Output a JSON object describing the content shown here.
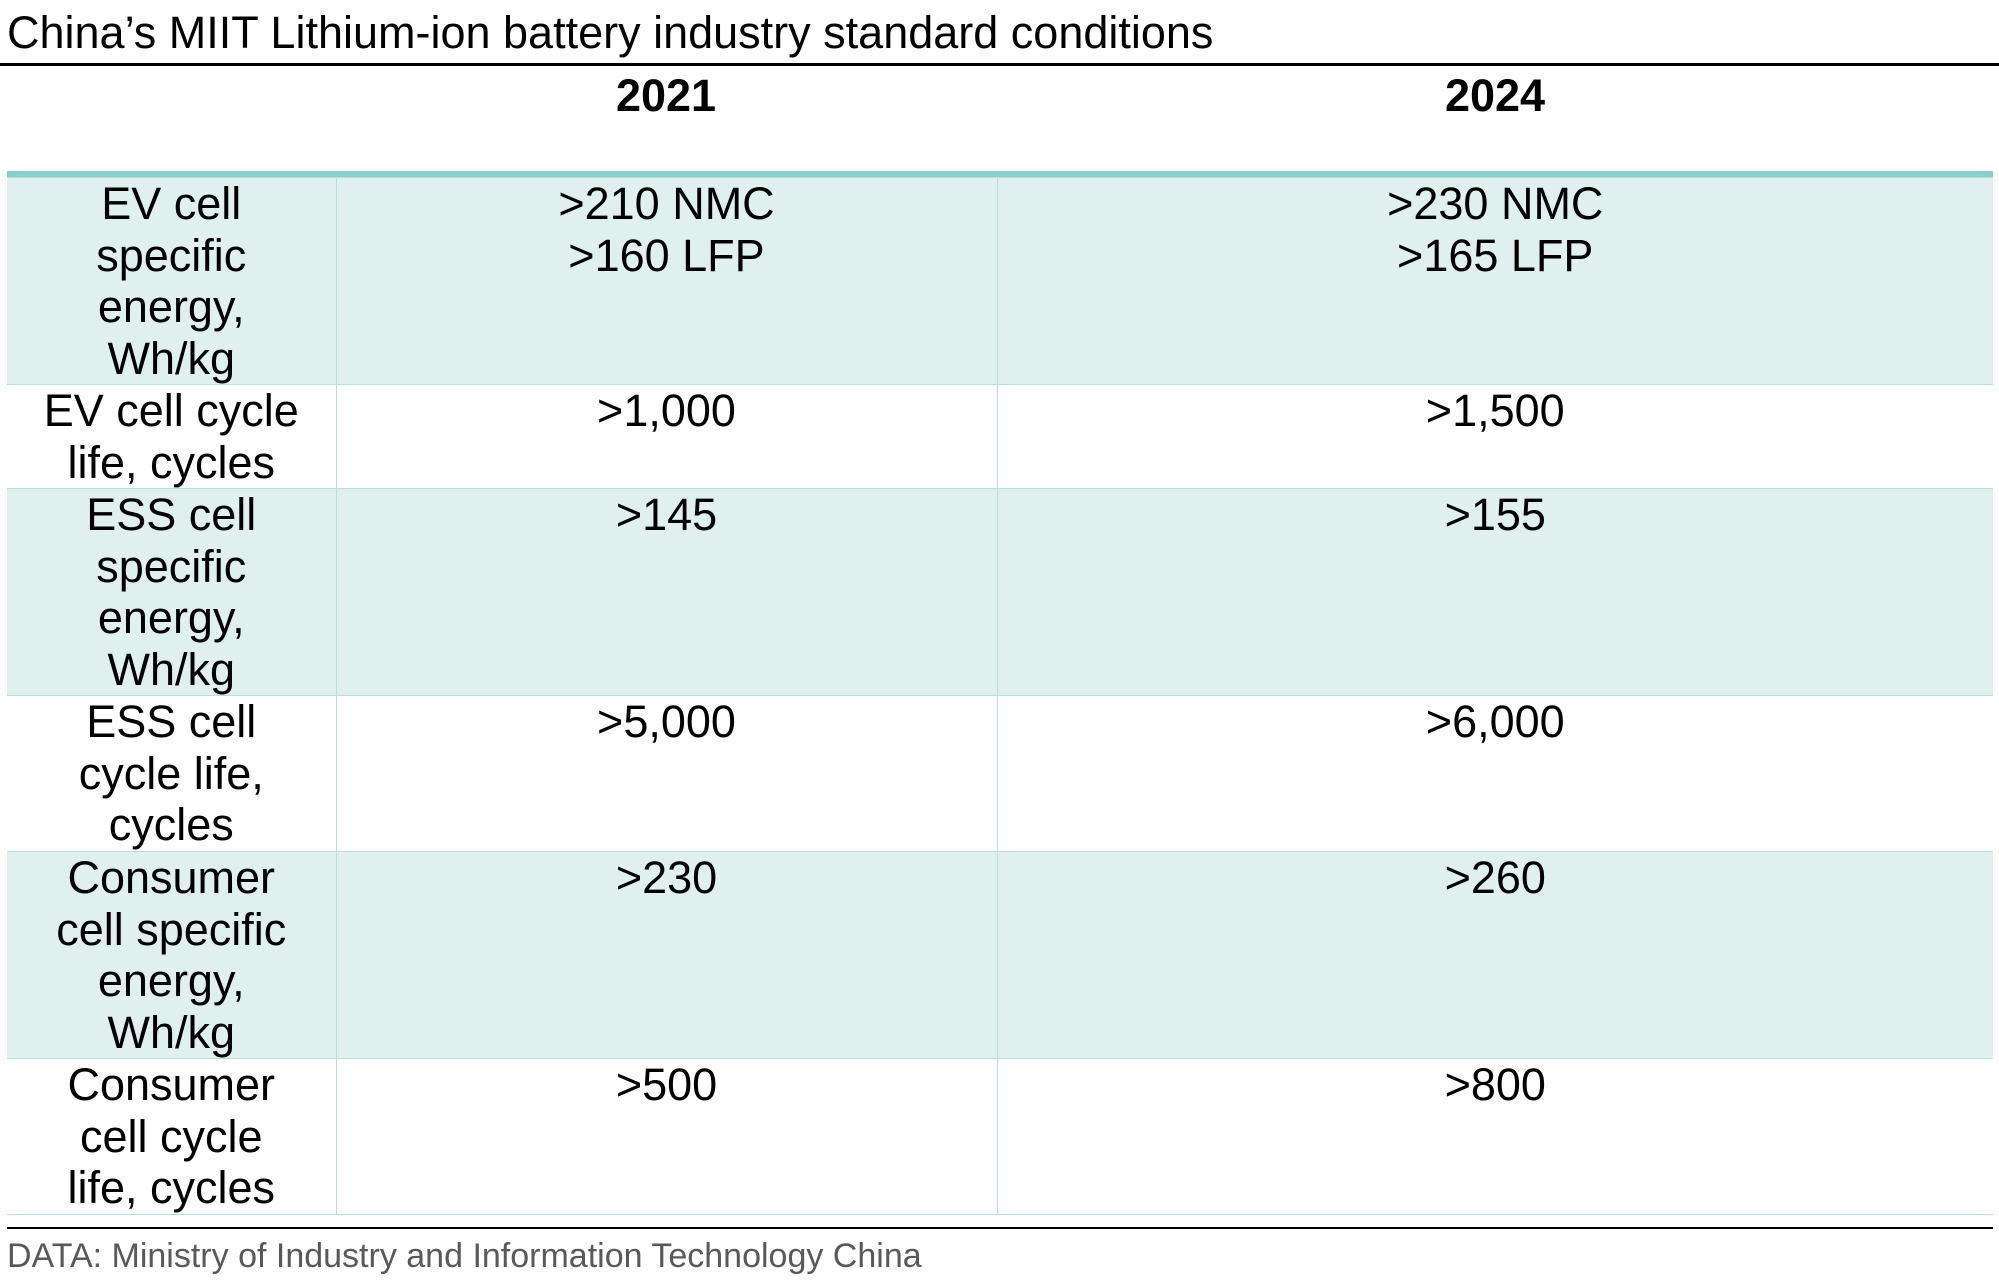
{
  "chart_data": {
    "type": "table",
    "title": "China’s MIIT Lithium-ion battery industry standard conditions",
    "columns": [
      "2021",
      "2024"
    ],
    "rows": [
      {
        "label_lines": [
          "EV cell",
          "specific",
          "energy,",
          "Wh/kg"
        ],
        "values": [
          [
            ">210 NMC",
            ">160 LFP"
          ],
          [
            ">230 NMC",
            ">165 LFP"
          ]
        ]
      },
      {
        "label_lines": [
          "EV cell cycle",
          "life, cycles"
        ],
        "values": [
          [
            ">1,000"
          ],
          [
            ">1,500"
          ]
        ]
      },
      {
        "label_lines": [
          "ESS cell",
          "specific",
          "energy,",
          "Wh/kg"
        ],
        "values": [
          [
            ">145"
          ],
          [
            ">155"
          ]
        ]
      },
      {
        "label_lines": [
          "ESS cell",
          "cycle life,",
          "cycles"
        ],
        "values": [
          [
            ">5,000"
          ],
          [
            ">6,000"
          ]
        ]
      },
      {
        "label_lines": [
          "Consumer",
          "cell specific",
          "energy,",
          "Wh/kg"
        ],
        "values": [
          [
            ">230"
          ],
          [
            ">260"
          ]
        ]
      },
      {
        "label_lines": [
          "Consumer",
          "cell cycle",
          "life, cycles"
        ],
        "values": [
          [
            ">500"
          ],
          [
            ">800"
          ]
        ]
      }
    ],
    "source": "DATA: Ministry of Industry and Information Technology China"
  },
  "colors": {
    "shaded_row": "#dff0ef",
    "header_rule": "#8ccfca",
    "grid_line": "#b7e0dd",
    "source_text": "#595959"
  }
}
